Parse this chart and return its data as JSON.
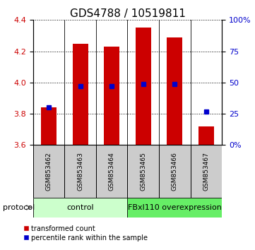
{
  "title": "GDS4788 / 10519811",
  "samples": [
    "GSM853462",
    "GSM853463",
    "GSM853464",
    "GSM853465",
    "GSM853466",
    "GSM853467"
  ],
  "bar_bottom": 3.6,
  "bar_tops": [
    3.84,
    4.25,
    4.23,
    4.35,
    4.29,
    3.72
  ],
  "percentile_values": [
    0.3,
    0.47,
    0.47,
    0.49,
    0.49,
    0.27
  ],
  "ylim_left": [
    3.6,
    4.4
  ],
  "ylim_right": [
    0.0,
    1.0
  ],
  "yticks_left": [
    3.6,
    3.8,
    4.0,
    4.2,
    4.4
  ],
  "yticks_right": [
    0.0,
    0.25,
    0.5,
    0.75,
    1.0
  ],
  "ytick_labels_right": [
    "0%",
    "25",
    "50",
    "75",
    "100%"
  ],
  "bar_color": "#cc0000",
  "blue_color": "#0000cc",
  "protocol_groups": [
    {
      "label": "control",
      "indices": [
        0,
        1,
        2
      ],
      "color": "#ccffcc"
    },
    {
      "label": "FBxl110 overexpression",
      "indices": [
        3,
        4,
        5
      ],
      "color": "#66ee66"
    }
  ],
  "protocol_label": "protocol",
  "legend_red_label": "transformed count",
  "legend_blue_label": "percentile rank within the sample",
  "sample_box_color": "#cccccc",
  "title_fontsize": 11,
  "tick_fontsize": 8
}
